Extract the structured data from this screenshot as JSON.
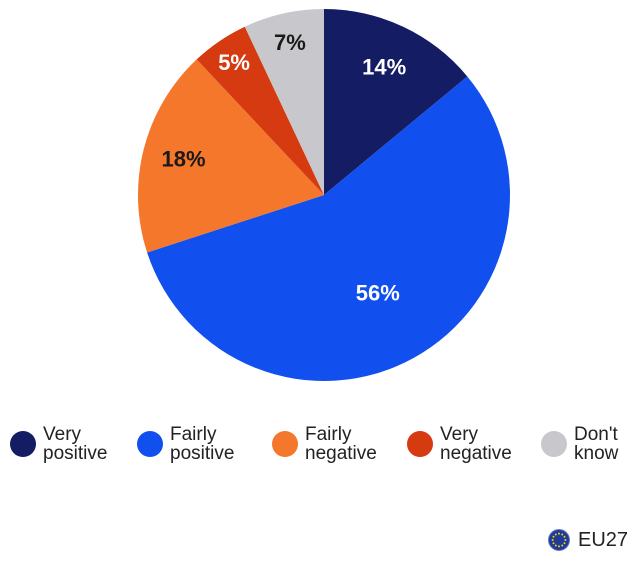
{
  "chart_data": {
    "type": "pie",
    "start_angle_deg": 0,
    "direction": "clockwise",
    "slices": [
      {
        "key": "very_positive",
        "label_lines": [
          "Very",
          "positive"
        ],
        "value": 14,
        "value_label": "14%",
        "color": "#141c64",
        "label_color": "#ffffff"
      },
      {
        "key": "fairly_positive",
        "label_lines": [
          "Fairly",
          "positive"
        ],
        "value": 56,
        "value_label": "56%",
        "color": "#1150ee",
        "label_color": "#ffffff"
      },
      {
        "key": "fairly_negative",
        "label_lines": [
          "Fairly",
          "negative"
        ],
        "value": 18,
        "value_label": "18%",
        "color": "#f4772c",
        "label_color": "#1a1a1a"
      },
      {
        "key": "very_negative",
        "label_lines": [
          "Very",
          "negative"
        ],
        "value": 5,
        "value_label": "5%",
        "color": "#d63a10",
        "label_color": "#ffffff"
      },
      {
        "key": "dont_know",
        "label_lines": [
          "Don't",
          "know"
        ],
        "value": 7,
        "value_label": "7%",
        "color": "#c8c8cc",
        "label_color": "#1a1a1a"
      }
    ],
    "legend_placement": "bottom"
  },
  "region": {
    "label": "EU27",
    "icon": "eu-flag-icon"
  }
}
